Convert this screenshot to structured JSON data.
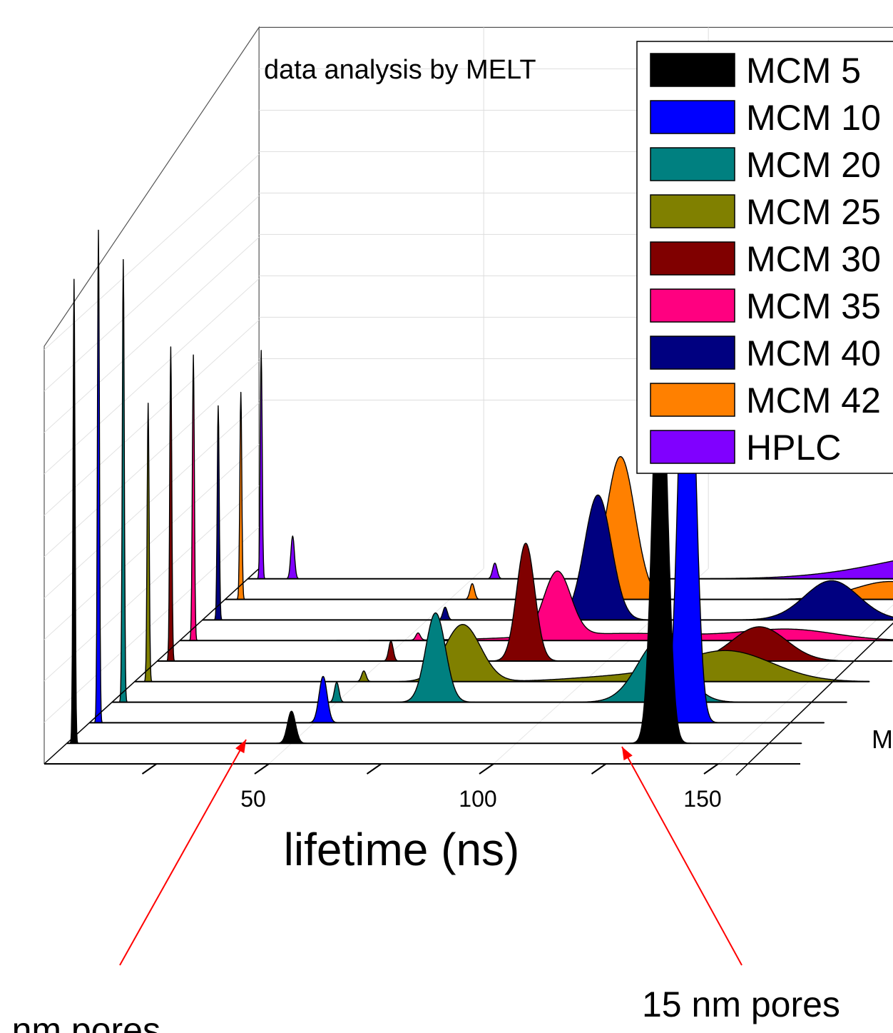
{
  "chart_data": {
    "type": "area",
    "subtype": "3d-waterfall",
    "annotation_top": "data analysis by MELT",
    "xlabel": "lifetime (ns)",
    "x_ticks": [
      "50",
      "100",
      "150"
    ],
    "x_tick_values": [
      50,
      100,
      150
    ],
    "xlim": [
      0,
      170
    ],
    "depth_axis_label_partial": "M",
    "legend_position": "top-right",
    "series": [
      {
        "name": "MCM 5",
        "color": "#000000",
        "peaks": [
          {
            "x": 1.6,
            "h": 650
          },
          {
            "x": 50,
            "h": 45,
            "w": 0.9
          },
          {
            "x": 132,
            "h": 600,
            "w": 1.6
          }
        ]
      },
      {
        "name": "MCM 10",
        "color": "#0000ff",
        "peaks": [
          {
            "x": 2,
            "h": 690
          },
          {
            "x": 52,
            "h": 65,
            "w": 0.9
          },
          {
            "x": 133,
            "h": 700,
            "w": 1.7
          }
        ]
      },
      {
        "name": "MCM 20",
        "color": "#008080",
        "peaks": [
          {
            "x": 2.5,
            "h": 620
          },
          {
            "x": 50,
            "h": 28,
            "w": 0.5
          },
          {
            "x": 72,
            "h": 125,
            "w": 2.2
          },
          {
            "x": 122,
            "h": 88,
            "w": 5
          }
        ]
      },
      {
        "name": "MCM 25",
        "color": "#808000",
        "peaks": [
          {
            "x": 3,
            "h": 390
          },
          {
            "x": 51,
            "h": 15,
            "w": 0.5
          },
          {
            "x": 73,
            "h": 80,
            "w": 4
          },
          {
            "x": 110,
            "h": 8,
            "w": 12
          },
          {
            "x": 132,
            "h": 42,
            "w": 10
          }
        ]
      },
      {
        "name": "MCM 30",
        "color": "#800000",
        "peaks": [
          {
            "x": 3,
            "h": 440
          },
          {
            "x": 52,
            "h": 28,
            "w": 0.5
          },
          {
            "x": 82,
            "h": 165,
            "w": 2
          },
          {
            "x": 134,
            "h": 48,
            "w": 6
          }
        ]
      },
      {
        "name": "MCM 35",
        "color": "#ff0080",
        "peaks": [
          {
            "x": 3,
            "h": 400
          },
          {
            "x": 53,
            "h": 10,
            "w": 0.5
          },
          {
            "x": 84,
            "h": 90,
            "w": 3
          },
          {
            "x": 100,
            "h": 10,
            "w": 20
          },
          {
            "x": 136,
            "h": 14,
            "w": 10
          }
        ]
      },
      {
        "name": "MCM 40",
        "color": "#000080",
        "peaks": [
          {
            "x": 3.5,
            "h": 300
          },
          {
            "x": 54,
            "h": 18,
            "w": 0.5
          },
          {
            "x": 88,
            "h": 175,
            "w": 3
          },
          {
            "x": 140,
            "h": 55,
            "w": 6
          }
        ]
      },
      {
        "name": "MCM 42",
        "color": "#ff8000",
        "peaks": [
          {
            "x": 3.5,
            "h": 290
          },
          {
            "x": 55,
            "h": 22,
            "w": 0.5
          },
          {
            "x": 88,
            "h": 200,
            "w": 3.2
          },
          {
            "x": 148,
            "h": 25,
            "w": 8
          }
        ]
      },
      {
        "name": "HPLC",
        "color": "#8000ff",
        "peaks": [
          {
            "x": 3,
            "h": 320
          },
          {
            "x": 10,
            "h": 60,
            "w": 0.4
          },
          {
            "x": 55,
            "h": 22,
            "w": 0.5
          },
          {
            "x": 160,
            "h": 38,
            "w": 18
          }
        ]
      }
    ],
    "annotations": [
      {
        "text": "nm pores"
      },
      {
        "text": "15 nm pores"
      }
    ]
  }
}
